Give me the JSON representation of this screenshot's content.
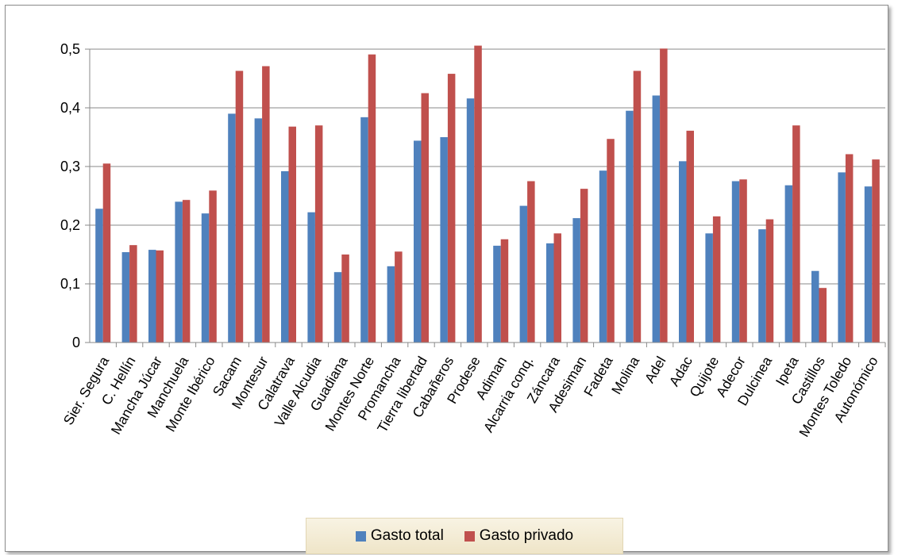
{
  "chart_data": {
    "type": "bar",
    "title": "",
    "xlabel": "",
    "ylabel": "",
    "ylim": [
      0,
      0.5
    ],
    "yticks": [
      0,
      0.1,
      0.2,
      0.3,
      0.4,
      0.5
    ],
    "ytick_labels": [
      "0",
      "0,1",
      "0,2",
      "0,3",
      "0,4",
      "0,5"
    ],
    "grid": "horizontal",
    "legend_position": "bottom",
    "categories": [
      "Sier. Segura",
      "C. Hellín",
      "Mancha Júcar",
      "Manchuela",
      "Monte Ibérico",
      "Sacam",
      "Montesur",
      "Calatrava",
      "Valle Alcudia",
      "Guadiana",
      "Montes Norte",
      "Promancha",
      "Tierra libertad",
      "Cabañeros",
      "Prodese",
      "Adiman",
      "Alcarria conq.",
      "Záncara",
      "Adesiman",
      "Fadeta",
      "Molina",
      "Adel",
      "Adac",
      "Quijote",
      "Adecor",
      "Dulcinea",
      "Ipeta",
      "Castillos",
      "Montes Toledo",
      "Autonómico"
    ],
    "series": [
      {
        "name": "Gasto total",
        "color": "#4f81bd",
        "values": [
          0.228,
          0.154,
          0.158,
          0.24,
          0.22,
          0.39,
          0.382,
          0.292,
          0.222,
          0.12,
          0.384,
          0.13,
          0.344,
          0.35,
          0.416,
          0.165,
          0.233,
          0.169,
          0.212,
          0.293,
          0.395,
          0.421,
          0.309,
          0.186,
          0.275,
          0.193,
          0.268,
          0.122,
          0.29,
          0.266
        ]
      },
      {
        "name": "Gasto privado",
        "color": "#c0504d",
        "values": [
          0.305,
          0.166,
          0.157,
          0.243,
          0.259,
          0.463,
          0.471,
          0.368,
          0.37,
          0.15,
          0.491,
          0.155,
          0.425,
          0.458,
          0.506,
          0.176,
          0.275,
          0.186,
          0.262,
          0.347,
          0.463,
          0.501,
          0.361,
          0.215,
          0.278,
          0.21,
          0.37,
          0.093,
          0.321,
          0.312
        ]
      }
    ]
  }
}
